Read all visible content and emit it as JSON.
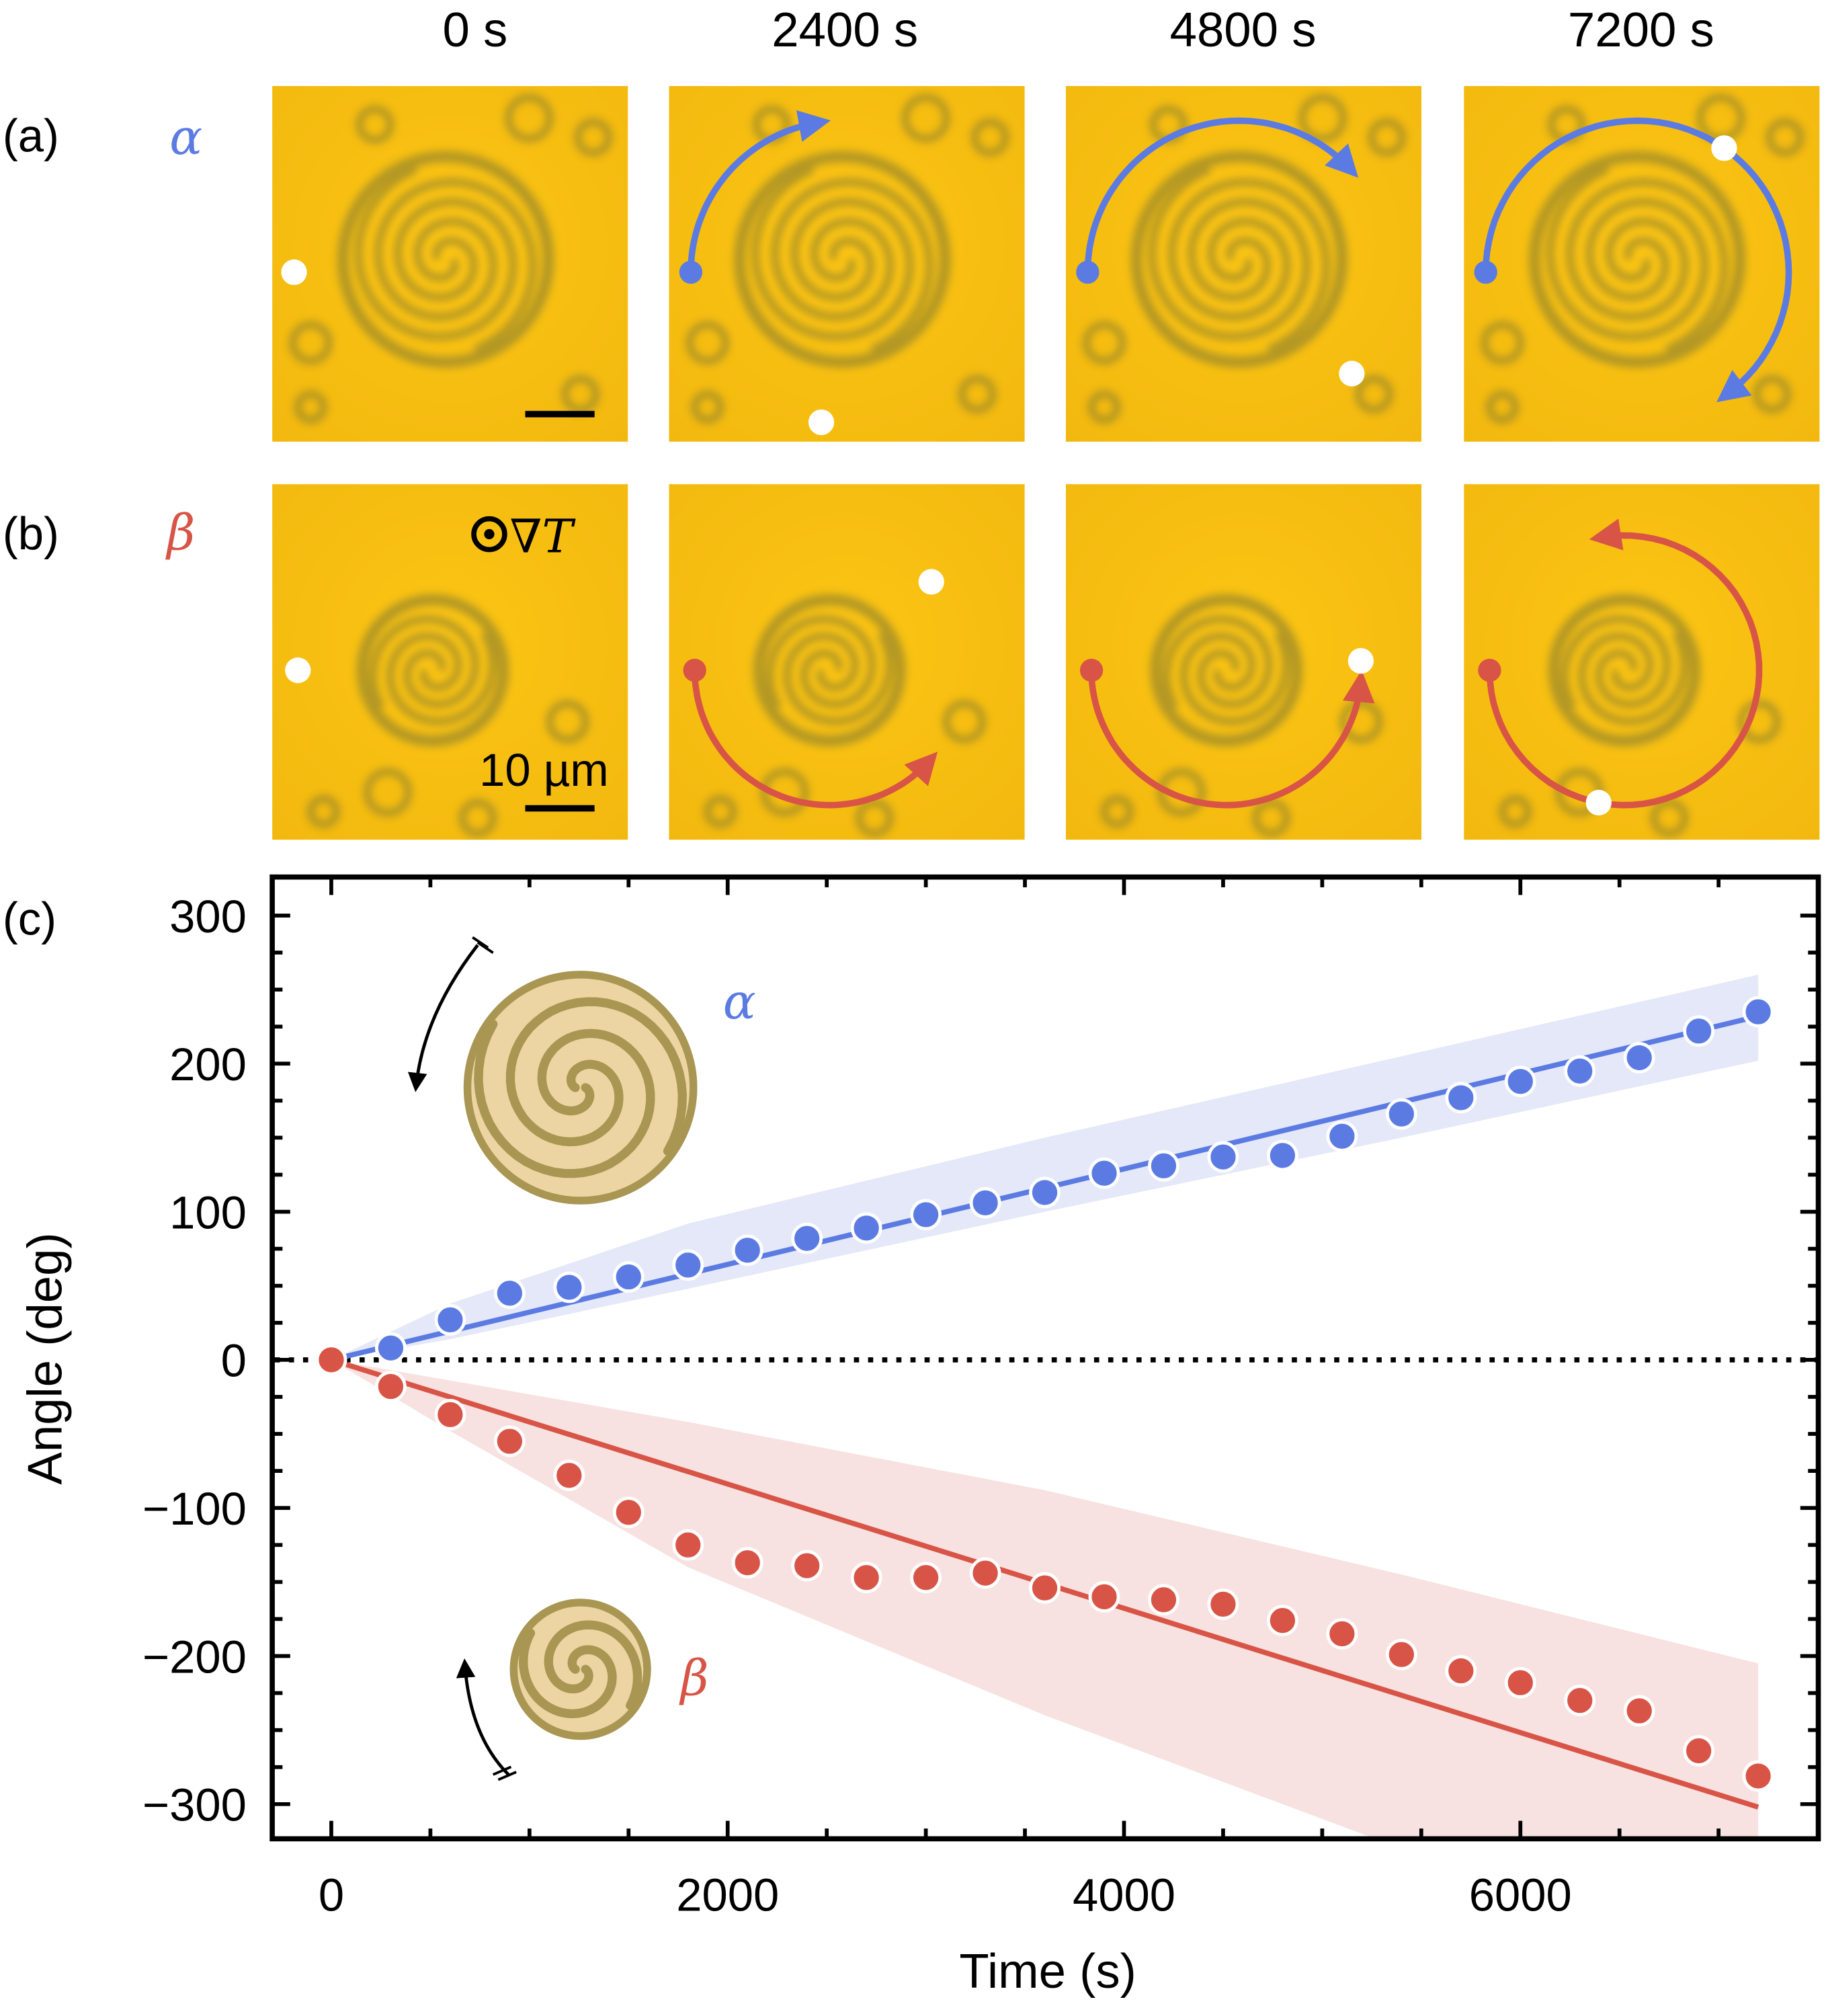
{
  "figure": {
    "panel_labels": {
      "a": "(a)",
      "b": "(b)",
      "c": "(c)"
    },
    "time_labels": [
      "0 s",
      "2400 s",
      "4800 s",
      "7200 s"
    ],
    "rows": [
      {
        "id": "alpha",
        "symbol": "α",
        "color": "#5b7be3",
        "direction": "counterclockwise-in-image",
        "tracked_angle_deg": [
          0,
          82,
          138,
          235
        ]
      },
      {
        "id": "beta",
        "symbol": "β",
        "color": "#d85446",
        "direction": "clockwise-in-image",
        "tracked_angle_deg": [
          0,
          -139,
          -176,
          -281
        ]
      }
    ],
    "image_annotations": {
      "gradient_label": "∇T",
      "gradient_symbol": "out-of-plane (dot in circle)",
      "scale_bar_label": "10 µm"
    },
    "colors": {
      "microscope_bg": "#f8bf12",
      "droplet_dark": "#9c8a2c",
      "marker_white": "#ffffff",
      "alpha": "#5b7be3",
      "alpha_band": "#e4e8f8",
      "beta": "#d85446",
      "beta_band": "#f7e2e1",
      "schematic_fill": "#edd5a3",
      "schematic_stroke": "#a89652"
    }
  },
  "chart_data": {
    "type": "scatter",
    "title": "",
    "xlabel": "Time (s)",
    "ylabel": "Angle (deg)",
    "xlim": [
      -300,
      7500
    ],
    "ylim": [
      -320,
      326
    ],
    "xticks": [
      0,
      2000,
      4000,
      6000
    ],
    "xtick_labels": [
      "0",
      "2000",
      "4000",
      "6000"
    ],
    "yticks": [
      300,
      200,
      100,
      0,
      -100,
      -200,
      -300
    ],
    "ytick_labels": [
      "300",
      "200",
      "100",
      "0",
      "−100",
      "−200",
      "−300"
    ],
    "grid": false,
    "zero_line": "dotted",
    "legend": "inline labels (α upper-left, β lower-left) with spiral schematics",
    "x": [
      0,
      300,
      600,
      900,
      1200,
      1500,
      1800,
      2100,
      2400,
      2700,
      3000,
      3300,
      3600,
      3900,
      4200,
      4500,
      4800,
      5100,
      5400,
      5700,
      6000,
      6300,
      6600,
      6900,
      7200
    ],
    "series": [
      {
        "name": "α",
        "color": "#5b7be3",
        "values": [
          0,
          8,
          27,
          45,
          49,
          56,
          64,
          74,
          82,
          89,
          98,
          106,
          113,
          126,
          131,
          137,
          138,
          151,
          166,
          177,
          188,
          195,
          204,
          222,
          235
        ],
        "fit": {
          "x": [
            0,
            7200
          ],
          "y": [
            0,
            232
          ]
        },
        "band": {
          "x": [
            0,
            600,
            1800,
            3600,
            5400,
            7200
          ],
          "upper": [
            0,
            38,
            92,
            150,
            205,
            260
          ],
          "lower": [
            0,
            14,
            48,
            100,
            150,
            202
          ]
        },
        "schematic": {
          "rotation": "clockwise",
          "arms": 2,
          "size": "large"
        }
      },
      {
        "name": "β",
        "color": "#d85446",
        "values": [
          0,
          -18,
          -37,
          -55,
          -78,
          -103,
          -125,
          -137,
          -139,
          -147,
          -147,
          -144,
          -154,
          -160,
          -162,
          -165,
          -176,
          -185,
          -199,
          -210,
          -218,
          -230,
          -237,
          -264,
          -281
        ],
        "fit": {
          "x": [
            0,
            7200
          ],
          "y": [
            0,
            -302
          ]
        },
        "band": {
          "x": [
            0,
            600,
            1800,
            3600,
            5400,
            7200
          ],
          "upper": [
            0,
            -14,
            -42,
            -88,
            -145,
            -205
          ],
          "lower": [
            0,
            -48,
            -140,
            -240,
            -330,
            -420
          ]
        },
        "schematic": {
          "rotation": "counterclockwise",
          "arms": 2,
          "size": "small"
        }
      }
    ]
  }
}
